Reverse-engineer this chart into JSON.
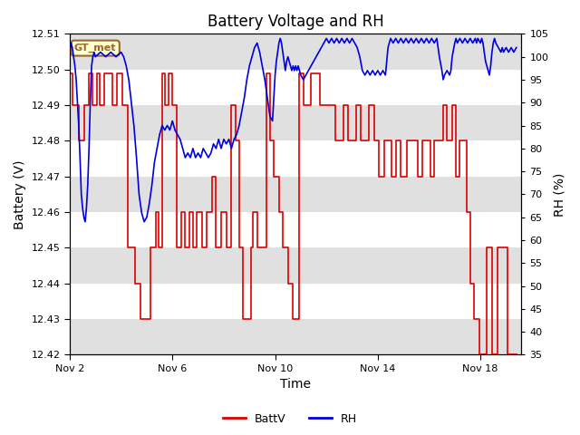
{
  "title": "Battery Voltage and RH",
  "xlabel": "Time",
  "ylabel_left": "Battery (V)",
  "ylabel_right": "RH (%)",
  "ylim_left": [
    12.42,
    12.51
  ],
  "ylim_right": [
    35,
    105
  ],
  "yticks_left": [
    12.42,
    12.43,
    12.44,
    12.45,
    12.46,
    12.47,
    12.48,
    12.49,
    12.5,
    12.51
  ],
  "yticks_right": [
    35,
    40,
    45,
    50,
    55,
    60,
    65,
    70,
    75,
    80,
    85,
    90,
    95,
    100,
    105
  ],
  "xtick_labels": [
    "Nov 2",
    "Nov 6",
    "Nov 10",
    "Nov 14",
    "Nov 18"
  ],
  "xtick_positions": [
    2,
    6,
    10,
    14,
    18
  ],
  "xmin": 2,
  "xmax": 19.6,
  "label_box_text": "GT_met",
  "label_box_bg": "#ffffcc",
  "label_box_edge": "#996633",
  "legend_labels": [
    "BattV",
    "RH"
  ],
  "legend_colors": [
    "#dd0000",
    "#0000dd"
  ],
  "battv_color": "#dd0000",
  "rh_color": "#0000dd",
  "bg_color": "#ffffff",
  "band_colors": [
    "#e0e0e0",
    "#ffffff"
  ],
  "band_boundaries_left": [
    12.42,
    12.43,
    12.44,
    12.45,
    12.46,
    12.47,
    12.48,
    12.49,
    12.5,
    12.51
  ],
  "title_fontsize": 12,
  "axis_label_fontsize": 10,
  "tick_fontsize": 8,
  "batt_pattern": [
    [
      2.0,
      12.499
    ],
    [
      2.05,
      12.499
    ],
    [
      2.1,
      12.49
    ],
    [
      2.3,
      12.49
    ],
    [
      2.35,
      12.48
    ],
    [
      2.5,
      12.48
    ],
    [
      2.55,
      12.49
    ],
    [
      2.7,
      12.49
    ],
    [
      2.75,
      12.499
    ],
    [
      2.85,
      12.499
    ],
    [
      2.9,
      12.49
    ],
    [
      3.0,
      12.49
    ],
    [
      3.05,
      12.499
    ],
    [
      3.1,
      12.499
    ],
    [
      3.15,
      12.49
    ],
    [
      3.3,
      12.49
    ],
    [
      3.35,
      12.499
    ],
    [
      3.6,
      12.499
    ],
    [
      3.65,
      12.49
    ],
    [
      3.8,
      12.49
    ],
    [
      3.85,
      12.499
    ],
    [
      4.0,
      12.499
    ],
    [
      4.05,
      12.49
    ],
    [
      4.2,
      12.49
    ],
    [
      4.25,
      12.45
    ],
    [
      4.5,
      12.45
    ],
    [
      4.55,
      12.44
    ],
    [
      4.7,
      12.44
    ],
    [
      4.75,
      12.43
    ],
    [
      5.1,
      12.43
    ],
    [
      5.15,
      12.45
    ],
    [
      5.3,
      12.45
    ],
    [
      5.35,
      12.46
    ],
    [
      5.4,
      12.46
    ],
    [
      5.45,
      12.45
    ],
    [
      5.55,
      12.45
    ],
    [
      5.6,
      12.499
    ],
    [
      5.65,
      12.499
    ],
    [
      5.7,
      12.49
    ],
    [
      5.8,
      12.49
    ],
    [
      5.85,
      12.499
    ],
    [
      5.95,
      12.499
    ],
    [
      6.0,
      12.49
    ],
    [
      6.1,
      12.49
    ],
    [
      6.15,
      12.45
    ],
    [
      6.3,
      12.45
    ],
    [
      6.35,
      12.46
    ],
    [
      6.45,
      12.46
    ],
    [
      6.5,
      12.45
    ],
    [
      6.6,
      12.45
    ],
    [
      6.65,
      12.46
    ],
    [
      6.75,
      12.46
    ],
    [
      6.8,
      12.45
    ],
    [
      6.9,
      12.45
    ],
    [
      6.95,
      12.46
    ],
    [
      7.1,
      12.46
    ],
    [
      7.15,
      12.45
    ],
    [
      7.3,
      12.45
    ],
    [
      7.35,
      12.46
    ],
    [
      7.5,
      12.46
    ],
    [
      7.55,
      12.47
    ],
    [
      7.65,
      12.47
    ],
    [
      7.7,
      12.45
    ],
    [
      7.85,
      12.45
    ],
    [
      7.9,
      12.46
    ],
    [
      8.05,
      12.46
    ],
    [
      8.1,
      12.45
    ],
    [
      8.25,
      12.45
    ],
    [
      8.3,
      12.49
    ],
    [
      8.4,
      12.49
    ],
    [
      8.45,
      12.48
    ],
    [
      8.55,
      12.48
    ],
    [
      8.6,
      12.45
    ],
    [
      8.7,
      12.45
    ],
    [
      8.75,
      12.43
    ],
    [
      9.0,
      12.43
    ],
    [
      9.05,
      12.45
    ],
    [
      9.1,
      12.45
    ],
    [
      9.15,
      12.46
    ],
    [
      9.25,
      12.46
    ],
    [
      9.3,
      12.45
    ],
    [
      9.4,
      12.45
    ],
    [
      9.45,
      12.45
    ],
    [
      9.6,
      12.45
    ],
    [
      9.65,
      12.499
    ],
    [
      9.75,
      12.499
    ],
    [
      9.8,
      12.48
    ],
    [
      9.9,
      12.48
    ],
    [
      9.95,
      12.47
    ],
    [
      10.1,
      12.47
    ],
    [
      10.15,
      12.46
    ],
    [
      10.25,
      12.46
    ],
    [
      10.3,
      12.45
    ],
    [
      10.45,
      12.45
    ],
    [
      10.5,
      12.44
    ],
    [
      10.65,
      12.44
    ],
    [
      10.7,
      12.43
    ],
    [
      10.9,
      12.43
    ],
    [
      10.95,
      12.499
    ],
    [
      11.05,
      12.499
    ],
    [
      11.1,
      12.49
    ],
    [
      11.35,
      12.49
    ],
    [
      11.4,
      12.499
    ],
    [
      11.7,
      12.499
    ],
    [
      11.75,
      12.49
    ],
    [
      12.0,
      12.49
    ],
    [
      12.05,
      12.49
    ],
    [
      12.3,
      12.49
    ],
    [
      12.35,
      12.48
    ],
    [
      12.6,
      12.48
    ],
    [
      12.65,
      12.49
    ],
    [
      12.8,
      12.49
    ],
    [
      12.85,
      12.48
    ],
    [
      13.1,
      12.48
    ],
    [
      13.15,
      12.49
    ],
    [
      13.3,
      12.49
    ],
    [
      13.35,
      12.48
    ],
    [
      13.6,
      12.48
    ],
    [
      13.65,
      12.49
    ],
    [
      13.8,
      12.49
    ],
    [
      13.85,
      12.48
    ],
    [
      14.0,
      12.48
    ],
    [
      14.05,
      12.47
    ],
    [
      14.2,
      12.47
    ],
    [
      14.25,
      12.48
    ],
    [
      14.5,
      12.48
    ],
    [
      14.55,
      12.47
    ],
    [
      14.65,
      12.47
    ],
    [
      14.7,
      12.48
    ],
    [
      14.85,
      12.48
    ],
    [
      14.9,
      12.47
    ],
    [
      15.1,
      12.47
    ],
    [
      15.15,
      12.48
    ],
    [
      15.5,
      12.48
    ],
    [
      15.55,
      12.47
    ],
    [
      15.7,
      12.47
    ],
    [
      15.75,
      12.48
    ],
    [
      16.0,
      12.48
    ],
    [
      16.05,
      12.47
    ],
    [
      16.15,
      12.47
    ],
    [
      16.2,
      12.48
    ],
    [
      16.5,
      12.48
    ],
    [
      16.55,
      12.49
    ],
    [
      16.65,
      12.49
    ],
    [
      16.7,
      12.48
    ],
    [
      16.85,
      12.48
    ],
    [
      16.9,
      12.49
    ],
    [
      17.0,
      12.49
    ],
    [
      17.05,
      12.47
    ],
    [
      17.15,
      12.47
    ],
    [
      17.2,
      12.48
    ],
    [
      17.4,
      12.48
    ],
    [
      17.45,
      12.46
    ],
    [
      17.55,
      12.46
    ],
    [
      17.6,
      12.44
    ],
    [
      17.7,
      12.44
    ],
    [
      17.75,
      12.43
    ],
    [
      17.9,
      12.43
    ],
    [
      17.95,
      12.42
    ],
    [
      18.2,
      12.42
    ],
    [
      18.25,
      12.45
    ],
    [
      18.4,
      12.45
    ],
    [
      18.45,
      12.42
    ],
    [
      18.6,
      12.42
    ],
    [
      18.65,
      12.45
    ],
    [
      19.0,
      12.45
    ],
    [
      19.05,
      12.42
    ],
    [
      19.4,
      12.42
    ]
  ],
  "rh_pattern": [
    [
      2.0,
      101
    ],
    [
      2.05,
      103
    ],
    [
      2.1,
      102
    ],
    [
      2.15,
      100
    ],
    [
      2.2,
      98
    ],
    [
      2.25,
      95
    ],
    [
      2.3,
      90
    ],
    [
      2.35,
      85
    ],
    [
      2.4,
      78
    ],
    [
      2.45,
      70
    ],
    [
      2.5,
      67
    ],
    [
      2.55,
      65
    ],
    [
      2.6,
      64
    ],
    [
      2.65,
      67
    ],
    [
      2.7,
      72
    ],
    [
      2.75,
      80
    ],
    [
      2.8,
      90
    ],
    [
      2.85,
      98
    ],
    [
      2.9,
      100
    ],
    [
      2.95,
      101
    ],
    [
      3.0,
      100
    ],
    [
      3.2,
      101
    ],
    [
      3.4,
      100
    ],
    [
      3.6,
      101
    ],
    [
      3.8,
      100
    ],
    [
      4.0,
      101
    ],
    [
      4.1,
      100
    ],
    [
      4.2,
      98
    ],
    [
      4.3,
      95
    ],
    [
      4.4,
      90
    ],
    [
      4.5,
      85
    ],
    [
      4.6,
      78
    ],
    [
      4.7,
      70
    ],
    [
      4.8,
      66
    ],
    [
      4.9,
      64
    ],
    [
      5.0,
      65
    ],
    [
      5.1,
      68
    ],
    [
      5.2,
      72
    ],
    [
      5.3,
      77
    ],
    [
      5.4,
      80
    ],
    [
      5.5,
      83
    ],
    [
      5.6,
      85
    ],
    [
      5.7,
      84
    ],
    [
      5.8,
      85
    ],
    [
      5.9,
      84
    ],
    [
      6.0,
      86
    ],
    [
      6.1,
      84
    ],
    [
      6.2,
      83
    ],
    [
      6.3,
      82
    ],
    [
      6.4,
      80
    ],
    [
      6.5,
      78
    ],
    [
      6.6,
      79
    ],
    [
      6.7,
      78
    ],
    [
      6.8,
      80
    ],
    [
      6.9,
      78
    ],
    [
      7.0,
      79
    ],
    [
      7.1,
      78
    ],
    [
      7.2,
      80
    ],
    [
      7.3,
      79
    ],
    [
      7.4,
      78
    ],
    [
      7.5,
      79
    ],
    [
      7.6,
      81
    ],
    [
      7.7,
      80
    ],
    [
      7.8,
      82
    ],
    [
      7.9,
      80
    ],
    [
      8.0,
      82
    ],
    [
      8.1,
      81
    ],
    [
      8.2,
      82
    ],
    [
      8.3,
      80
    ],
    [
      8.4,
      82
    ],
    [
      8.5,
      83
    ],
    [
      8.6,
      85
    ],
    [
      8.7,
      88
    ],
    [
      8.8,
      91
    ],
    [
      8.9,
      95
    ],
    [
      9.0,
      98
    ],
    [
      9.1,
      100
    ],
    [
      9.2,
      102
    ],
    [
      9.3,
      103
    ],
    [
      9.4,
      101
    ],
    [
      9.5,
      98
    ],
    [
      9.6,
      95
    ],
    [
      9.65,
      93
    ],
    [
      9.7,
      91
    ],
    [
      9.75,
      89
    ],
    [
      9.8,
      87
    ],
    [
      9.9,
      86
    ],
    [
      10.0,
      96
    ],
    [
      10.05,
      99
    ],
    [
      10.1,
      101
    ],
    [
      10.15,
      103
    ],
    [
      10.2,
      104
    ],
    [
      10.25,
      103
    ],
    [
      10.3,
      101
    ],
    [
      10.35,
      99
    ],
    [
      10.4,
      97
    ],
    [
      10.45,
      99
    ],
    [
      10.5,
      100
    ],
    [
      10.55,
      99
    ],
    [
      10.6,
      98
    ],
    [
      10.65,
      97
    ],
    [
      10.7,
      98
    ],
    [
      10.75,
      97
    ],
    [
      10.8,
      98
    ],
    [
      10.85,
      97
    ],
    [
      10.9,
      98
    ],
    [
      10.95,
      97
    ],
    [
      11.0,
      96
    ],
    [
      11.1,
      95
    ],
    [
      11.2,
      96
    ],
    [
      11.3,
      97
    ],
    [
      11.4,
      98
    ],
    [
      11.5,
      99
    ],
    [
      11.6,
      100
    ],
    [
      11.7,
      101
    ],
    [
      11.8,
      102
    ],
    [
      11.9,
      103
    ],
    [
      12.0,
      104
    ],
    [
      12.1,
      103
    ],
    [
      12.2,
      104
    ],
    [
      12.3,
      103
    ],
    [
      12.4,
      104
    ],
    [
      12.5,
      103
    ],
    [
      12.6,
      104
    ],
    [
      12.7,
      103
    ],
    [
      12.8,
      104
    ],
    [
      12.9,
      103
    ],
    [
      13.0,
      104
    ],
    [
      13.1,
      103
    ],
    [
      13.2,
      102
    ],
    [
      13.3,
      100
    ],
    [
      13.4,
      97
    ],
    [
      13.5,
      96
    ],
    [
      13.6,
      97
    ],
    [
      13.7,
      96
    ],
    [
      13.8,
      97
    ],
    [
      13.9,
      96
    ],
    [
      14.0,
      97
    ],
    [
      14.1,
      96
    ],
    [
      14.2,
      97
    ],
    [
      14.3,
      96
    ],
    [
      14.4,
      102
    ],
    [
      14.5,
      104
    ],
    [
      14.6,
      103
    ],
    [
      14.7,
      104
    ],
    [
      14.8,
      103
    ],
    [
      14.9,
      104
    ],
    [
      15.0,
      103
    ],
    [
      15.1,
      104
    ],
    [
      15.2,
      103
    ],
    [
      15.3,
      104
    ],
    [
      15.4,
      103
    ],
    [
      15.5,
      104
    ],
    [
      15.6,
      103
    ],
    [
      15.7,
      104
    ],
    [
      15.8,
      103
    ],
    [
      15.9,
      104
    ],
    [
      16.0,
      103
    ],
    [
      16.1,
      104
    ],
    [
      16.2,
      103
    ],
    [
      16.3,
      104
    ],
    [
      16.35,
      102
    ],
    [
      16.4,
      100
    ],
    [
      16.5,
      97
    ],
    [
      16.55,
      95
    ],
    [
      16.6,
      96
    ],
    [
      16.7,
      97
    ],
    [
      16.8,
      96
    ],
    [
      16.85,
      97
    ],
    [
      16.9,
      100
    ],
    [
      17.0,
      103
    ],
    [
      17.05,
      104
    ],
    [
      17.1,
      103
    ],
    [
      17.2,
      104
    ],
    [
      17.3,
      103
    ],
    [
      17.4,
      104
    ],
    [
      17.5,
      103
    ],
    [
      17.6,
      104
    ],
    [
      17.7,
      103
    ],
    [
      17.8,
      104
    ],
    [
      17.85,
      103
    ],
    [
      17.9,
      104
    ],
    [
      18.0,
      103
    ],
    [
      18.05,
      104
    ],
    [
      18.1,
      103
    ],
    [
      18.15,
      101
    ],
    [
      18.2,
      99
    ],
    [
      18.3,
      97
    ],
    [
      18.35,
      96
    ],
    [
      18.4,
      98
    ],
    [
      18.45,
      101
    ],
    [
      18.5,
      103
    ],
    [
      18.55,
      104
    ],
    [
      18.6,
      103
    ],
    [
      18.7,
      102
    ],
    [
      18.8,
      101
    ],
    [
      18.85,
      102
    ],
    [
      18.9,
      101
    ],
    [
      19.0,
      102
    ],
    [
      19.1,
      101
    ],
    [
      19.2,
      102
    ],
    [
      19.3,
      101
    ],
    [
      19.4,
      102
    ]
  ]
}
